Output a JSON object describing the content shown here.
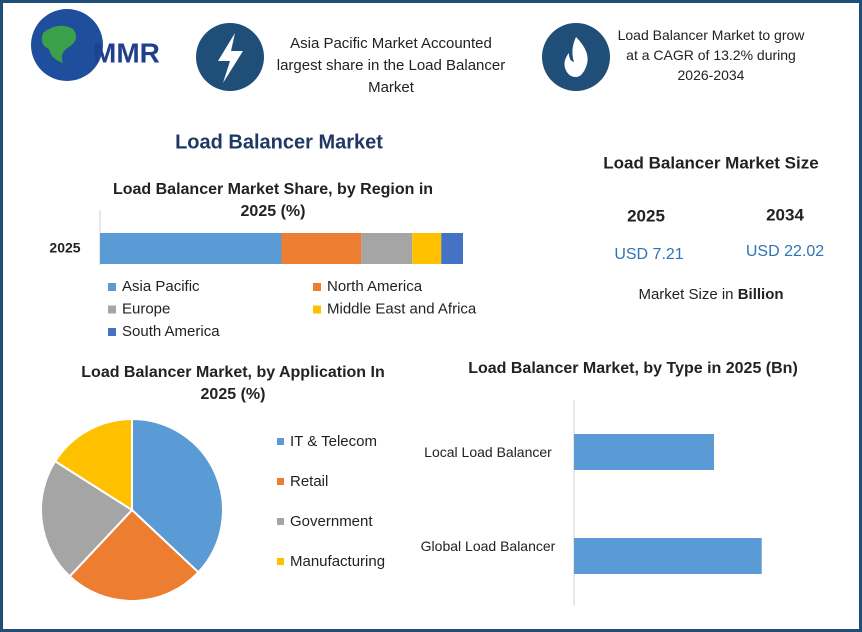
{
  "header": {
    "logo": "MMR",
    "fact_1": "Asia Pacific Market Accounted largest share in the Load Balancer Market",
    "fact_2": "Load Balancer Market to grow at a CAGR of 13.2% during 2026-2034"
  },
  "title": "Load Balancer Market",
  "market_size": {
    "title": "Load Balancer Market Size",
    "years": [
      "2025",
      "2034"
    ],
    "values": [
      "USD 7.21",
      "USD 22.02"
    ],
    "note": "Market Size in",
    "unit": "Billion"
  },
  "chart_data": [
    {
      "type": "stacked-bar",
      "title": "Load Balancer Market Share, by Region in 2025 (%)",
      "categories": [
        "2025"
      ],
      "series": [
        {
          "name": "Asia Pacific",
          "color": "#5b9bd5",
          "values": [
            50
          ]
        },
        {
          "name": "North America",
          "color": "#ed7d31",
          "values": [
            22
          ]
        },
        {
          "name": "Europe",
          "color": "#a5a5a5",
          "values": [
            14
          ]
        },
        {
          "name": "Middle East and Africa",
          "color": "#ffc000",
          "values": [
            8
          ]
        },
        {
          "name": "South America",
          "color": "#4472c4",
          "values": [
            6
          ]
        }
      ]
    },
    {
      "type": "pie",
      "title": "Load Balancer Market, by Application In 2025 (%)",
      "categories": [
        "IT & Telecom",
        "Retail",
        "Government",
        "Manufacturing"
      ],
      "values": [
        37,
        25,
        22,
        16
      ],
      "colors": [
        "#5b9bd5",
        "#ed7d31",
        "#a5a5a5",
        "#ffc000"
      ]
    },
    {
      "type": "hbar",
      "title": "Load Balancer Market, by Type in 2025 (Bn)",
      "categories": [
        "Local Load Balancer",
        "Global Load Balancer"
      ],
      "values": [
        3.08,
        4.13
      ],
      "color": "#5b9bd5"
    }
  ]
}
